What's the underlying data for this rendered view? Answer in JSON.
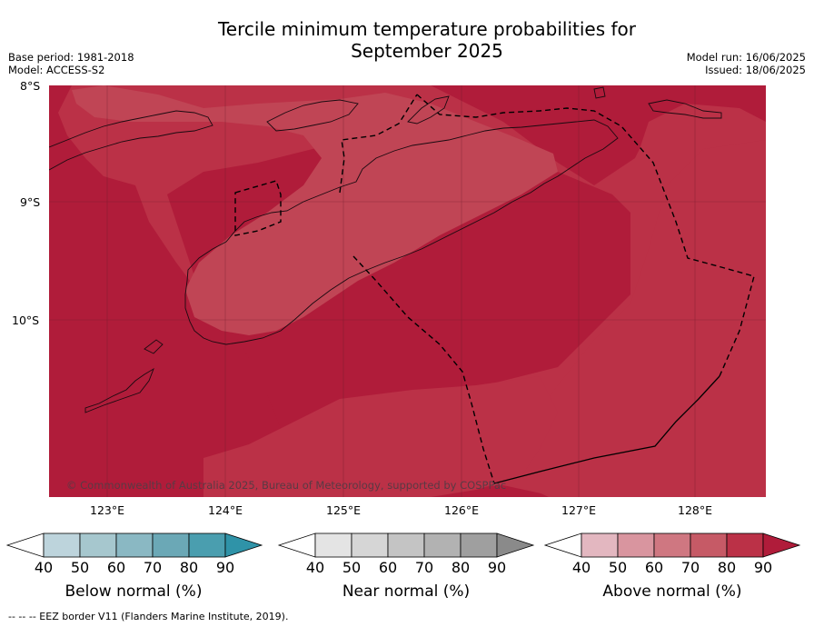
{
  "title_line1": "Tercile minimum temperature probabilities for",
  "title_line2": "September 2025",
  "meta": {
    "base_period": "Base period: 1981-2018",
    "model": "Model: ACCESS-S2",
    "model_run": "Model run: 16/06/2025",
    "issued": "Issued: 18/06/2025"
  },
  "latitudes": [
    "8°S",
    "9°S",
    "10°S"
  ],
  "longitudes": [
    "123°E",
    "124°E",
    "125°E",
    "126°E",
    "127°E",
    "128°E"
  ],
  "credit": "© Commonwealth of Australia 2025, Bureau of Meteorology, supported by COSPPac",
  "colorbars": [
    {
      "title": "Below normal (%)",
      "ticks": [
        "40",
        "50",
        "60",
        "70",
        "80",
        "90"
      ],
      "colors": [
        "#bdd4dc",
        "#a6c7ce",
        "#8ab8c3",
        "#6ba8b6",
        "#4a9eaf",
        "#2f93a8"
      ]
    },
    {
      "title": "Near normal (%)",
      "ticks": [
        "40",
        "50",
        "60",
        "70",
        "80",
        "90"
      ],
      "colors": [
        "#e4e4e4",
        "#d6d6d6",
        "#c4c4c4",
        "#b2b2b2",
        "#9f9f9f",
        "#8a8a8a"
      ]
    },
    {
      "title": "Above normal (%)",
      "ticks": [
        "40",
        "50",
        "60",
        "70",
        "80",
        "90"
      ],
      "colors": [
        "#e3b7c0",
        "#d9959f",
        "#cf7781",
        "#c65a66",
        "#bb3147",
        "#b01c3a"
      ]
    }
  ],
  "footer": "--  --  -- EEZ border V11 (Flanders Marine Institute, 2019).",
  "map_colors": {
    "above_90": "#b01c3a",
    "above_80": "#bb3147",
    "above_70": "#c04555"
  }
}
